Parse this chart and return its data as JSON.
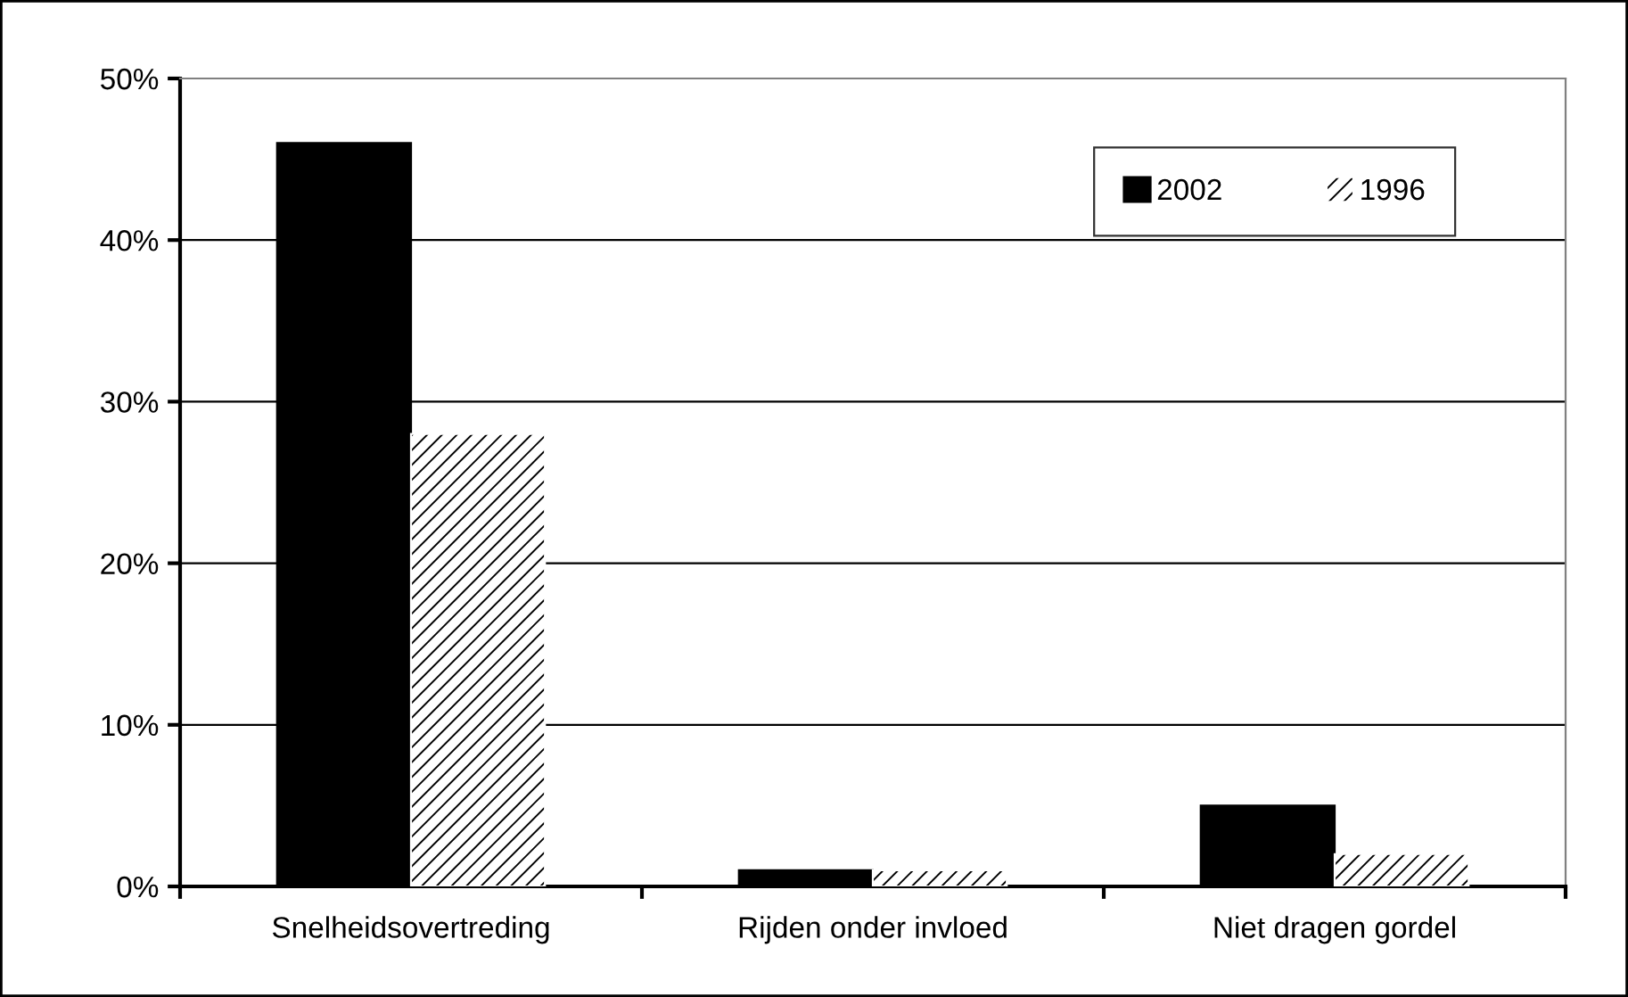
{
  "chart_data": {
    "type": "bar",
    "categories": [
      "Snelheidsovertreding",
      "Rijden onder invloed",
      "Niet dragen gordel"
    ],
    "series": [
      {
        "name": "2002",
        "color": "#000000",
        "values": [
          46,
          1,
          5
        ]
      },
      {
        "name": "1996",
        "color": "#ffffff",
        "values": [
          28,
          1,
          2
        ]
      }
    ],
    "ylim": [
      0,
      50
    ],
    "yticks": [
      {
        "value": 0,
        "label": "0%"
      },
      {
        "value": 10,
        "label": "10%"
      },
      {
        "value": 20,
        "label": "20%"
      },
      {
        "value": 30,
        "label": "30%"
      },
      {
        "value": 40,
        "label": "40%"
      },
      {
        "value": 50,
        "label": "50%"
      }
    ],
    "grid": "y",
    "legend": "top right"
  }
}
